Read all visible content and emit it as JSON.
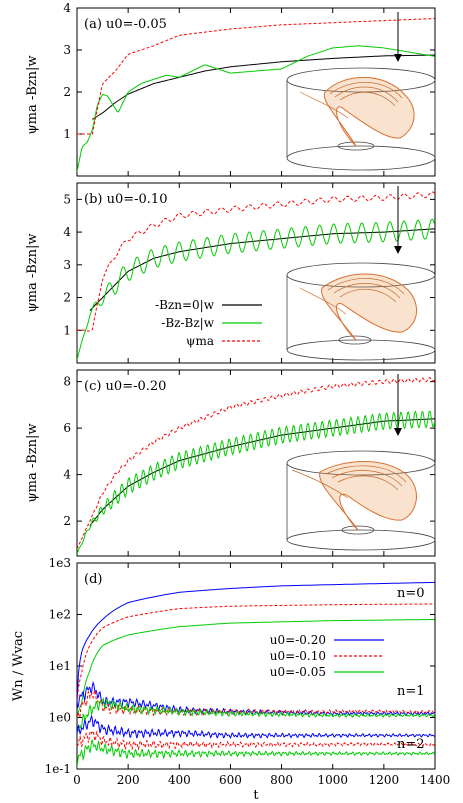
{
  "figure": {
    "xlabel": "t",
    "x_ticks": [
      "0",
      "200",
      "400",
      "600",
      "800",
      "1000",
      "1200",
      "1400"
    ],
    "panels": [
      {
        "label": "(a) u0=-0.05",
        "ylabel": "ψma  -Bzn|w",
        "y_ticks": [
          "1",
          "2",
          "3",
          "4"
        ],
        "has_inset": true
      },
      {
        "label": "(b) u0=-0.10",
        "ylabel": "ψma  -Bzn|w",
        "y_ticks": [
          "1",
          "2",
          "3",
          "4",
          "5"
        ],
        "legend": [
          "-Bzn=0|w",
          "-Bz-Bz|w",
          "ψma"
        ],
        "has_inset": true
      },
      {
        "label": "(c) u0=-0.20",
        "ylabel": "ψma  -Bzn|w",
        "y_ticks": [
          "2",
          "4",
          "6",
          "8"
        ],
        "has_inset": true
      },
      {
        "label": "(d)",
        "ylabel": "Wn / Wvac",
        "y_ticks": [
          "1e-1",
          "1e0",
          "1e1",
          "1e2",
          "1e3"
        ],
        "mode_labels": [
          "n=0",
          "n=1",
          "n=2"
        ],
        "legend": [
          "u0=-0.20",
          "u0=-0.10",
          "u0=-0.05"
        ]
      }
    ]
  },
  "chart_data": [
    {
      "type": "line",
      "title": "(a) u0=-0.05",
      "xlabel": "t",
      "ylabel": "ψma  -Bzn|w",
      "xlim": [
        0,
        1400
      ],
      "ylim": [
        0,
        4
      ],
      "series": [
        {
          "color": "#000000",
          "x": [
            60,
            100,
            150,
            200,
            300,
            400,
            500,
            600,
            800,
            1000,
            1200,
            1400
          ],
          "y": [
            1.35,
            1.5,
            1.75,
            1.95,
            2.2,
            2.35,
            2.5,
            2.6,
            2.72,
            2.8,
            2.86,
            2.88
          ]
        },
        {
          "color": "#00cc00",
          "x": [
            0,
            20,
            40,
            60,
            80,
            100,
            120,
            160,
            200,
            250,
            300,
            350,
            400,
            500,
            600,
            700,
            800,
            900,
            1000,
            1100,
            1200,
            1300,
            1400
          ],
          "y": [
            0.1,
            0.7,
            0.8,
            1.1,
            1.7,
            1.95,
            1.9,
            1.5,
            2.0,
            2.2,
            2.3,
            2.4,
            2.35,
            2.65,
            2.45,
            2.5,
            2.55,
            2.85,
            3.05,
            3.1,
            3.05,
            2.95,
            2.85
          ]
        },
        {
          "color": "#ff0000",
          "dashed": true,
          "x": [
            0,
            60,
            80,
            100,
            150,
            200,
            300,
            400,
            600,
            800,
            1000,
            1200,
            1400
          ],
          "y": [
            1.0,
            1.0,
            1.6,
            2.2,
            2.5,
            2.9,
            3.1,
            3.35,
            3.5,
            3.6,
            3.65,
            3.7,
            3.75
          ]
        }
      ]
    },
    {
      "type": "line",
      "title": "(b) u0=-0.10",
      "xlabel": "t",
      "ylabel": "ψma  -Bzn|w",
      "xlim": [
        0,
        1400
      ],
      "ylim": [
        0,
        5.5
      ],
      "legend": [
        "-Bzn=0|w",
        "-Bz-Bz|w",
        "ψma"
      ],
      "series": [
        {
          "name": "-Bzn=0|w",
          "color": "#000000",
          "x": [
            50,
            100,
            150,
            200,
            300,
            400,
            600,
            800,
            1000,
            1200,
            1400
          ],
          "y": [
            1.6,
            2.0,
            2.4,
            2.8,
            3.2,
            3.4,
            3.65,
            3.8,
            3.95,
            4.0,
            4.1
          ]
        },
        {
          "name": "-Bz-Bz|w",
          "color": "#00cc00",
          "osc_amp": 0.3,
          "osc_period": 55,
          "x": [
            0,
            50,
            100,
            150,
            200,
            300,
            400,
            600,
            800,
            1000,
            1200,
            1400
          ],
          "y": [
            0.1,
            1.5,
            2.0,
            2.4,
            2.8,
            3.2,
            3.4,
            3.65,
            3.8,
            3.95,
            4.0,
            4.1
          ]
        },
        {
          "name": "ψma",
          "color": "#ff0000",
          "dashed": true,
          "osc_amp": 0.08,
          "osc_period": 55,
          "x": [
            0,
            60,
            100,
            150,
            200,
            300,
            400,
            600,
            800,
            1000,
            1200,
            1400
          ],
          "y": [
            1.0,
            1.0,
            2.6,
            3.3,
            3.8,
            4.2,
            4.5,
            4.7,
            4.85,
            5.0,
            5.05,
            5.15
          ]
        }
      ]
    },
    {
      "type": "line",
      "title": "(c) u0=-0.20",
      "xlabel": "t",
      "ylabel": "ψma  -Bzn|w",
      "xlim": [
        0,
        1400
      ],
      "ylim": [
        0.5,
        8.5
      ],
      "series": [
        {
          "color": "#000000",
          "x": [
            50,
            100,
            150,
            200,
            300,
            400,
            600,
            800,
            1000,
            1200,
            1400
          ],
          "y": [
            1.8,
            2.5,
            3.0,
            3.5,
            4.1,
            4.6,
            5.2,
            5.7,
            6.0,
            6.3,
            6.4
          ]
        },
        {
          "color": "#00cc00",
          "osc_amp": 0.35,
          "osc_period": 28,
          "x": [
            0,
            50,
            100,
            150,
            200,
            300,
            400,
            600,
            800,
            1000,
            1200,
            1400
          ],
          "y": [
            0.6,
            1.8,
            2.5,
            3.0,
            3.5,
            4.1,
            4.6,
            5.2,
            5.7,
            6.0,
            6.3,
            6.4
          ]
        },
        {
          "color": "#ff0000",
          "dashed": true,
          "osc_amp": 0.08,
          "osc_period": 28,
          "x": [
            0,
            50,
            100,
            150,
            200,
            300,
            400,
            600,
            800,
            1000,
            1200,
            1400
          ],
          "y": [
            0.8,
            2.0,
            3.2,
            4.0,
            4.6,
            5.4,
            6.0,
            6.9,
            7.4,
            7.8,
            8.0,
            8.1
          ]
        }
      ]
    },
    {
      "type": "line",
      "title": "(d)",
      "xlabel": "t",
      "ylabel": "Wn / Wvac",
      "xlim": [
        0,
        1400
      ],
      "ylim": [
        0.1,
        1000
      ],
      "yscale": "log",
      "legend": [
        "u0=-0.20",
        "u0=-0.10",
        "u0=-0.05"
      ],
      "series": [
        {
          "name": "u0=-0.20",
          "mode": "n=0",
          "color": "#0000ff",
          "x": [
            0,
            20,
            50,
            100,
            200,
            400,
            600,
            800,
            1000,
            1200,
            1400
          ],
          "y": [
            2,
            20,
            40,
            80,
            170,
            270,
            320,
            360,
            380,
            400,
            420
          ]
        },
        {
          "name": "u0=-0.10",
          "mode": "n=0",
          "color": "#ff0000",
          "dashed": true,
          "x": [
            0,
            20,
            50,
            100,
            200,
            400,
            600,
            800,
            1000,
            1200,
            1400
          ],
          "y": [
            2,
            8,
            25,
            55,
            90,
            130,
            145,
            150,
            155,
            158,
            160
          ]
        },
        {
          "name": "u0=-0.05",
          "mode": "n=0",
          "color": "#00cc00",
          "x": [
            0,
            20,
            50,
            100,
            200,
            400,
            600,
            800,
            1000,
            1200,
            1400
          ],
          "y": [
            1,
            2,
            8,
            25,
            40,
            58,
            68,
            72,
            76,
            78,
            80
          ]
        },
        {
          "name": "u0=-0.20",
          "mode": "n=1",
          "color": "#0000ff",
          "noisy": true,
          "x": [
            0,
            60,
            100,
            200,
            400,
            600,
            800,
            1000,
            1200,
            1400
          ],
          "y": [
            2,
            4,
            2,
            2,
            1.4,
            1.3,
            1.25,
            1.2,
            1.2,
            1.2
          ]
        },
        {
          "name": "u0=-0.10",
          "mode": "n=1",
          "color": "#ff0000",
          "dashed": true,
          "noisy": true,
          "x": [
            0,
            60,
            100,
            200,
            400,
            600,
            800,
            1000,
            1200,
            1400
          ],
          "y": [
            1,
            3,
            1.6,
            1.4,
            1.3,
            1.3,
            1.3,
            1.3,
            1.3,
            1.3
          ]
        },
        {
          "name": "u0=-0.05",
          "mode": "n=1",
          "color": "#00cc00",
          "noisy": true,
          "x": [
            0,
            60,
            100,
            200,
            400,
            600,
            800,
            1000,
            1200,
            1400
          ],
          "y": [
            0.5,
            1.5,
            2,
            1.5,
            1.3,
            1.2,
            1.15,
            1.1,
            1.1,
            1.1
          ]
        },
        {
          "name": "u0=-0.20",
          "mode": "n=2",
          "color": "#0000ff",
          "noisy": true,
          "x": [
            0,
            60,
            100,
            200,
            400,
            600,
            800,
            1000,
            1200,
            1400
          ],
          "y": [
            0.5,
            0.9,
            0.6,
            0.5,
            0.5,
            0.45,
            0.45,
            0.45,
            0.45,
            0.45
          ]
        },
        {
          "name": "u0=-0.10",
          "mode": "n=2",
          "color": "#ff0000",
          "dashed": true,
          "noisy": true,
          "x": [
            0,
            60,
            100,
            200,
            400,
            600,
            800,
            1000,
            1200,
            1400
          ],
          "y": [
            0.3,
            0.5,
            0.35,
            0.3,
            0.3,
            0.3,
            0.3,
            0.3,
            0.3,
            0.3
          ]
        },
        {
          "name": "u0=-0.05",
          "mode": "n=2",
          "color": "#00cc00",
          "noisy": true,
          "x": [
            0,
            60,
            100,
            200,
            400,
            600,
            800,
            1000,
            1200,
            1400
          ],
          "y": [
            0.15,
            0.3,
            0.25,
            0.2,
            0.2,
            0.2,
            0.2,
            0.2,
            0.2,
            0.2
          ]
        }
      ]
    }
  ]
}
